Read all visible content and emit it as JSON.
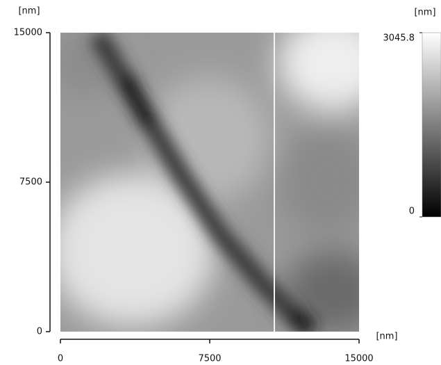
{
  "chart_data": {
    "type": "image",
    "x_label": "[nm]",
    "y_label": "[nm]",
    "colorbar_label": "[nm]",
    "xlim": [
      0,
      15000
    ],
    "xticks": [
      0,
      7500,
      15000
    ],
    "ylim": [
      0,
      15000
    ],
    "yticks": [
      0,
      7500,
      15000
    ],
    "zlim": [
      0,
      3045.8
    ],
    "zticks": [
      0,
      3045.8
    ],
    "colormap": [
      "#000000",
      "#ffffff"
    ]
  }
}
